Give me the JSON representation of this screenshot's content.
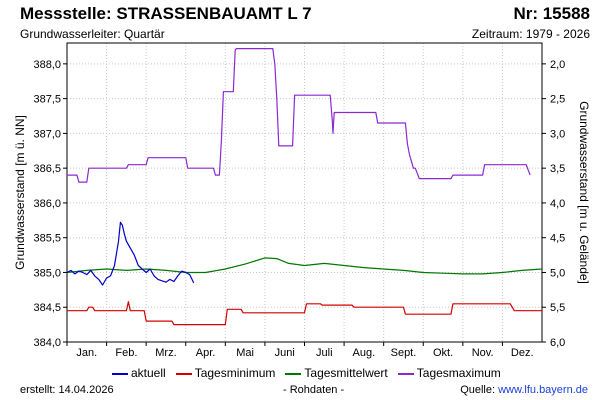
{
  "header": {
    "title": "Messstelle: STRASSENBAUAMT L 7",
    "number": "Nr: 15588",
    "aquifer": "Grundwasserleiter: Quartär",
    "period": "Zeitraum: 1979 - 2026"
  },
  "footer": {
    "created": "erstellt:  14.04.2026",
    "raw": "- Rohdaten -",
    "source_label": "Quelle: ",
    "source_link": "www.lfu.bayern.de"
  },
  "colors": {
    "aktuell": "#0000c8",
    "min": "#d20000",
    "mean": "#007800",
    "max": "#8c28d2",
    "grid": "#c8c8c8"
  },
  "chart_data": {
    "type": "line",
    "ylabel": "Grundwasserstand [m ü. NN]",
    "ylabel_right": "Grundwasserstand [m u. Gelände]",
    "ylim": [
      384.0,
      388.3
    ],
    "yticks": [
      384.0,
      384.5,
      385.0,
      385.5,
      386.0,
      386.5,
      387.0,
      387.5,
      388.0
    ],
    "yticks_labels": [
      "384,0",
      "384,5",
      "385,0",
      "385,5",
      "386,0",
      "386,5",
      "387,0",
      "387,5",
      "388,0"
    ],
    "yticks_right": [
      2.0,
      2.5,
      3.0,
      3.5,
      4.0,
      4.5,
      5.0,
      5.5,
      6.0
    ],
    "yticks_right_labels": [
      "2,0",
      "2,5",
      "3,0",
      "3,5",
      "4,0",
      "4,5",
      "5,0",
      "5,5",
      "6,0"
    ],
    "right_axis_offset": 390.0,
    "xlim": [
      0,
      12
    ],
    "months": [
      "Jan.",
      "Feb.",
      "Mrz.",
      "Apr.",
      "Mai",
      "Juni",
      "Juli",
      "Aug.",
      "Sept.",
      "Okt.",
      "Nov.",
      "Dez."
    ],
    "grid": true,
    "legend_position": "bottom",
    "series": [
      {
        "name": "aktuell",
        "key": "aktuell",
        "x": [
          0.0,
          0.1,
          0.2,
          0.3,
          0.4,
          0.5,
          0.6,
          0.7,
          0.8,
          0.9,
          1.0,
          1.1,
          1.2,
          1.3,
          1.35,
          1.4,
          1.45,
          1.5,
          1.6,
          1.7,
          1.8,
          1.9,
          2.0,
          2.1,
          2.2,
          2.3,
          2.4,
          2.5,
          2.6,
          2.7,
          2.8,
          2.9,
          3.0,
          3.1,
          3.2
        ],
        "y": [
          385.0,
          385.03,
          384.98,
          385.02,
          385.0,
          384.97,
          385.03,
          384.95,
          384.9,
          384.82,
          384.92,
          384.95,
          385.1,
          385.45,
          385.72,
          385.68,
          385.55,
          385.45,
          385.35,
          385.25,
          385.1,
          385.05,
          385.0,
          385.05,
          384.95,
          384.9,
          384.88,
          384.86,
          384.9,
          384.87,
          384.95,
          385.02,
          385.0,
          384.97,
          384.85
        ]
      },
      {
        "name": "Tagesminimum",
        "key": "min",
        "x": [
          0.0,
          0.5,
          0.55,
          0.65,
          0.7,
          1.5,
          1.55,
          1.6,
          1.95,
          2.0,
          2.65,
          2.7,
          4.0,
          4.05,
          4.4,
          4.45,
          6.0,
          6.05,
          6.4,
          6.45,
          7.2,
          7.25,
          8.5,
          8.55,
          9.7,
          9.75,
          11.2,
          11.3,
          12.0
        ],
        "y": [
          384.45,
          384.45,
          384.5,
          384.5,
          384.45,
          384.45,
          384.58,
          384.45,
          384.45,
          384.3,
          384.3,
          384.25,
          384.25,
          384.47,
          384.47,
          384.42,
          384.42,
          384.55,
          384.55,
          384.53,
          384.53,
          384.5,
          384.5,
          384.4,
          384.4,
          384.55,
          384.55,
          384.45,
          384.45
        ]
      },
      {
        "name": "Tagesmittelwert",
        "key": "mean",
        "x": [
          0.0,
          0.5,
          1.0,
          1.5,
          2.0,
          2.5,
          3.0,
          3.5,
          4.0,
          4.5,
          5.0,
          5.3,
          5.6,
          6.0,
          6.5,
          7.0,
          7.5,
          8.0,
          8.5,
          9.0,
          9.5,
          10.0,
          10.5,
          11.0,
          11.5,
          12.0
        ],
        "y": [
          385.0,
          385.03,
          385.05,
          385.03,
          385.05,
          385.03,
          385.0,
          385.0,
          385.05,
          385.12,
          385.21,
          385.2,
          385.13,
          385.1,
          385.13,
          385.1,
          385.07,
          385.05,
          385.03,
          385.0,
          384.99,
          384.98,
          384.98,
          385.0,
          385.03,
          385.05
        ]
      },
      {
        "name": "Tagesmaximum",
        "key": "max",
        "x": [
          0.0,
          0.25,
          0.3,
          0.5,
          0.55,
          1.5,
          1.55,
          2.0,
          2.05,
          3.0,
          3.05,
          3.7,
          3.75,
          3.85,
          3.9,
          3.95,
          4.2,
          4.25,
          4.28,
          5.2,
          5.25,
          5.3,
          5.35,
          5.7,
          5.75,
          6.65,
          6.7,
          6.72,
          6.75,
          7.8,
          7.85,
          8.55,
          8.6,
          8.65,
          8.75,
          8.8,
          8.9,
          9.0,
          9.05,
          9.7,
          9.75,
          10.5,
          10.55,
          11.6,
          11.7
        ],
        "y": [
          386.4,
          386.4,
          386.3,
          386.3,
          386.5,
          386.5,
          386.55,
          386.55,
          386.65,
          386.65,
          386.5,
          386.5,
          386.4,
          386.4,
          386.9,
          387.6,
          387.6,
          388.2,
          388.22,
          388.22,
          388.0,
          387.5,
          386.82,
          386.82,
          387.55,
          387.55,
          387.2,
          387.0,
          387.3,
          387.3,
          387.15,
          387.15,
          386.85,
          386.7,
          386.5,
          386.5,
          386.35,
          386.35,
          386.35,
          386.35,
          386.4,
          386.4,
          386.55,
          386.55,
          386.4
        ]
      }
    ]
  }
}
